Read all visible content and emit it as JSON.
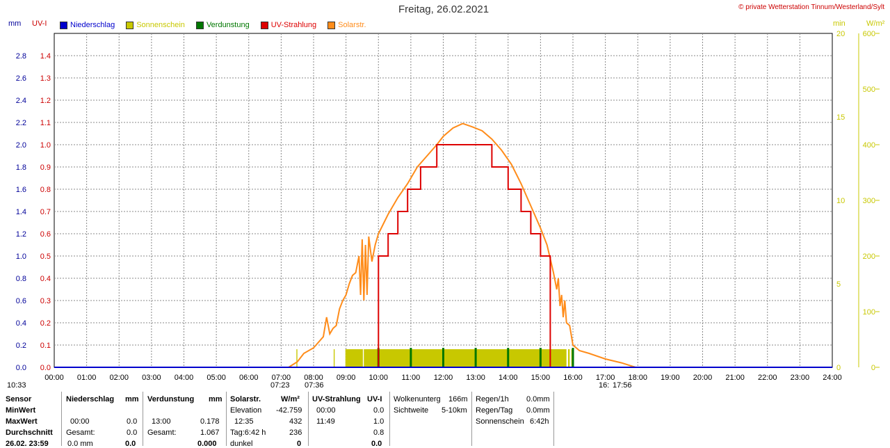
{
  "title": "Freitag, 26.02.2021",
  "copyright": "© private Wetterstation Tinnum/Westerland/Sylt",
  "axis_units": {
    "left1": "mm",
    "left2": "UV-I",
    "right1": "min",
    "right2": "W/m²"
  },
  "legend": [
    {
      "label": "Niederschlag",
      "color": "#0000cc"
    },
    {
      "label": "Sonnenschein",
      "color": "#c8c800"
    },
    {
      "label": "Verdunstung",
      "color": "#007700"
    },
    {
      "label": "UV-Strahlung",
      "color": "#dd0000"
    },
    {
      "label": "Solarstr.",
      "color": "#ff8c1a"
    }
  ],
  "colors": {
    "grid": "#888888",
    "axis": "#000000",
    "mm_ticks": "#000099",
    "uv_ticks": "#cc0000",
    "min_ticks": "#c8c800",
    "wm2_ticks": "#c8c800"
  },
  "chart_data": {
    "type": "line",
    "x_range": [
      "00:00",
      "24:00"
    ],
    "x_ticks": [
      "00:00",
      "01:00",
      "02:00",
      "03:00",
      "04:00",
      "05:00",
      "06:00",
      "07:00",
      "08:00",
      "09:00",
      "10:00",
      "11:00",
      "12:00",
      "13:00",
      "14:00",
      "15:00",
      "16:00",
      "17:00",
      "18:00",
      "19:00",
      "20:00",
      "21:00",
      "22:00",
      "23:00",
      "24:00"
    ],
    "mm_ticks": [
      "0.0",
      "0.2",
      "0.4",
      "0.6",
      "0.8",
      "1.0",
      "1.2",
      "1.4",
      "1.6",
      "1.8",
      "2.0",
      "2.2",
      "2.4",
      "2.6",
      "2.8"
    ],
    "uv_ticks": [
      "0.0",
      "0.1",
      "0.2",
      "0.3",
      "0.4",
      "0.5",
      "0.6",
      "0.7",
      "0.8",
      "0.9",
      "1.0",
      "1.1",
      "1.2",
      "1.3",
      "1.4"
    ],
    "min_ticks": [
      "0",
      "5",
      "10",
      "15",
      "20"
    ],
    "wm2_ticks": [
      "0",
      "100",
      "200",
      "300",
      "400",
      "500",
      "600"
    ],
    "uv_ylim": [
      0,
      1.5
    ],
    "wm2_ylim": [
      0,
      600
    ],
    "min_ylim": [
      0,
      20
    ],
    "uv_series": {
      "name": "UV-Strahlung",
      "steps": [
        [
          0,
          0
        ],
        [
          10.0,
          0
        ],
        [
          10.0,
          0.5
        ],
        [
          10.3,
          0.5
        ],
        [
          10.3,
          0.6
        ],
        [
          10.6,
          0.6
        ],
        [
          10.6,
          0.7
        ],
        [
          10.9,
          0.7
        ],
        [
          10.9,
          0.8
        ],
        [
          11.3,
          0.8
        ],
        [
          11.3,
          0.9
        ],
        [
          11.8,
          0.9
        ],
        [
          11.8,
          1.0
        ],
        [
          13.5,
          1.0
        ],
        [
          13.5,
          0.9
        ],
        [
          14.0,
          0.9
        ],
        [
          14.0,
          0.8
        ],
        [
          14.4,
          0.8
        ],
        [
          14.4,
          0.7
        ],
        [
          14.7,
          0.7
        ],
        [
          14.7,
          0.6
        ],
        [
          15.0,
          0.6
        ],
        [
          15.0,
          0.5
        ],
        [
          15.3,
          0.5
        ],
        [
          15.3,
          0.0
        ],
        [
          24,
          0
        ]
      ]
    },
    "solar_series": {
      "name": "Solarstr.",
      "points": [
        [
          7.23,
          0
        ],
        [
          7.5,
          10
        ],
        [
          7.7,
          25
        ],
        [
          8.0,
          35
        ],
        [
          8.3,
          55
        ],
        [
          8.4,
          90
        ],
        [
          8.5,
          60
        ],
        [
          8.6,
          70
        ],
        [
          8.7,
          75
        ],
        [
          8.8,
          105
        ],
        [
          8.9,
          120
        ],
        [
          9.0,
          130
        ],
        [
          9.1,
          150
        ],
        [
          9.2,
          165
        ],
        [
          9.3,
          170
        ],
        [
          9.4,
          200
        ],
        [
          9.45,
          130
        ],
        [
          9.5,
          230
        ],
        [
          9.55,
          120
        ],
        [
          9.6,
          220
        ],
        [
          9.65,
          130
        ],
        [
          9.7,
          235
        ],
        [
          9.8,
          190
        ],
        [
          9.9,
          220
        ],
        [
          10.0,
          240
        ],
        [
          10.3,
          275
        ],
        [
          10.6,
          305
        ],
        [
          10.9,
          330
        ],
        [
          11.2,
          360
        ],
        [
          11.5,
          380
        ],
        [
          11.8,
          400
        ],
        [
          12.0,
          415
        ],
        [
          12.3,
          430
        ],
        [
          12.6,
          438
        ],
        [
          12.9,
          432
        ],
        [
          13.2,
          425
        ],
        [
          13.5,
          410
        ],
        [
          13.8,
          390
        ],
        [
          14.1,
          365
        ],
        [
          14.4,
          330
        ],
        [
          14.7,
          290
        ],
        [
          15.0,
          250
        ],
        [
          15.2,
          220
        ],
        [
          15.3,
          195
        ],
        [
          15.4,
          170
        ],
        [
          15.5,
          140
        ],
        [
          15.55,
          160
        ],
        [
          15.6,
          110
        ],
        [
          15.65,
          130
        ],
        [
          15.7,
          90
        ],
        [
          15.75,
          120
        ],
        [
          15.8,
          80
        ],
        [
          15.9,
          75
        ],
        [
          16.0,
          40
        ],
        [
          16.2,
          30
        ],
        [
          16.5,
          25
        ],
        [
          17.0,
          15
        ],
        [
          17.5,
          8
        ],
        [
          17.93,
          0
        ]
      ]
    },
    "sunshine_bars": [
      [
        7.47,
        7.5
      ],
      [
        8.62,
        8.65
      ],
      [
        8.98,
        9.0
      ],
      [
        9.0,
        9.52
      ],
      [
        9.55,
        15.8
      ],
      [
        15.85,
        15.9
      ],
      [
        15.95,
        16.0
      ]
    ],
    "evaporation_spikes": [
      10.0,
      11.0,
      12.0,
      13.0,
      14.0,
      15.0,
      16.0
    ],
    "sunrise": "07:23",
    "sunrise_end": "07:36",
    "sunset_label": "16:",
    "sunset": "17:56",
    "current_time": "10:33"
  },
  "stats": {
    "headers": {
      "sensor": "Sensor",
      "niederschlag": "Niederschlag",
      "mm": "mm",
      "verdunstung": "Verdunstung",
      "mm2": "mm",
      "solar": "Solarstr.",
      "wm2": "W/m²",
      "uv": "UV-Strahlung",
      "uvi": "UV-I"
    },
    "rows": {
      "min": "MinWert",
      "max": "MaxWert",
      "avg": "Durchschnitt",
      "date": "26.02. 23:59"
    },
    "nied": {
      "max_time": "00:00",
      "max_val": "0.0",
      "gesamt_label": "Gesamt:",
      "gesamt_val": "0.0",
      "last_a": "0.0 mm",
      "last_b": "0.0"
    },
    "verd": {
      "max_time": "13:00",
      "max_val": "0.178",
      "gesamt_label": "Gesamt:",
      "gesamt_val": "1.067",
      "last_b": "0.000"
    },
    "solar": {
      "elev_label": "Elevation",
      "elev_val": "-42.759",
      "max_time": "12:35",
      "max_val": "432",
      "tag_label": "Tag:6:42 h",
      "tag_val": "236",
      "dunkel_label": "dunkel",
      "dunkel_val": "0"
    },
    "uvs": {
      "min_time": "00:00",
      "min_val": "0.0",
      "max_time": "11:49",
      "max_val": "1.0",
      "avg_val": "0.8",
      "last_val": "0.0"
    },
    "wolken": {
      "label1": "Wolkenunterg",
      "val1": "166m",
      "label2": "Sichtweite",
      "val2": "5-10km"
    },
    "regen": {
      "l1": "Regen/1h",
      "v1": "0.0mm",
      "l2": "Regen/Tag",
      "v2": "0.0mm",
      "l3": "Sonnenschein",
      "v3": "6:42h"
    }
  }
}
